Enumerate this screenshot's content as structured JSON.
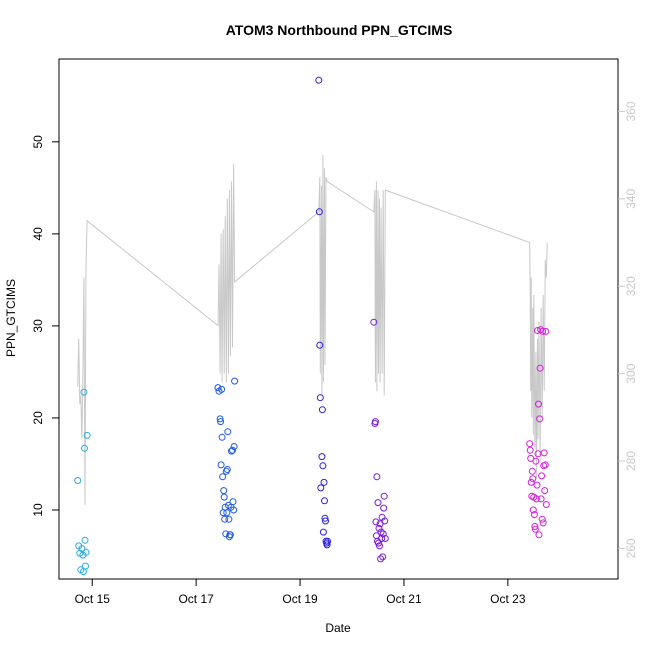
{
  "chart_data": {
    "type": "scatter",
    "title": "ATOM3 Northbound PPN_GTCIMS",
    "xlabel": "Date",
    "ylabel": "PPN_GTCIMS",
    "x_ticks": [
      "Oct 15",
      "Oct 17",
      "Oct 19",
      "Oct 21",
      "Oct 23"
    ],
    "x_tick_days": [
      15,
      17,
      19,
      21,
      23
    ],
    "xlim_days": [
      14.36,
      25.12
    ],
    "y_ticks": [
      10,
      20,
      30,
      40,
      50
    ],
    "ylim": [
      2.5,
      59
    ],
    "y2_ticks": [
      260,
      280,
      300,
      320,
      340,
      360
    ],
    "y2lim": [
      253,
      372
    ],
    "grid": false,
    "legend": "none",
    "colors": {
      "g1": "#29abe2",
      "g2": "#1f5ae8",
      "g3": "#2a1ee6",
      "g4": "#7a1bd9",
      "g5": "#d81ee0",
      "line": "#c8c8c8"
    },
    "series": [
      {
        "color_key": "g1",
        "points": [
          [
            14.72,
            13.2
          ],
          [
            14.74,
            6.1
          ],
          [
            14.76,
            5.3
          ],
          [
            14.78,
            3.5
          ],
          [
            14.8,
            5.8
          ],
          [
            14.82,
            5.1
          ],
          [
            14.83,
            3.3
          ],
          [
            14.84,
            22.8
          ],
          [
            14.85,
            16.7
          ],
          [
            14.86,
            6.7
          ],
          [
            14.87,
            3.9
          ],
          [
            14.88,
            5.4
          ],
          [
            14.9,
            18.1
          ]
        ]
      },
      {
        "color_key": "g2",
        "points": [
          [
            17.42,
            23.3
          ],
          [
            17.44,
            22.9
          ],
          [
            17.46,
            19.9
          ],
          [
            17.47,
            19.6
          ],
          [
            17.48,
            14.9
          ],
          [
            17.49,
            23.1
          ],
          [
            17.5,
            17.9
          ],
          [
            17.51,
            13.6
          ],
          [
            17.52,
            9.7
          ],
          [
            17.53,
            12.1
          ],
          [
            17.54,
            11.4
          ],
          [
            17.55,
            9.0
          ],
          [
            17.56,
            10.3
          ],
          [
            17.57,
            7.4
          ],
          [
            17.58,
            14.2
          ],
          [
            17.59,
            9.7
          ],
          [
            17.6,
            14.4
          ],
          [
            17.61,
            18.5
          ],
          [
            17.62,
            10.5
          ],
          [
            17.63,
            9.0
          ],
          [
            17.64,
            7.1
          ],
          [
            17.65,
            7.3
          ],
          [
            17.66,
            7.3
          ],
          [
            17.67,
            10.3
          ],
          [
            17.68,
            16.4
          ],
          [
            17.7,
            16.5
          ],
          [
            17.71,
            10.9
          ],
          [
            17.72,
            10.0
          ],
          [
            17.73,
            16.9
          ],
          [
            17.74,
            24.0
          ]
        ]
      },
      {
        "color_key": "g3",
        "points": [
          [
            19.36,
            56.7
          ],
          [
            19.37,
            42.4
          ],
          [
            19.38,
            27.9
          ],
          [
            19.39,
            22.2
          ],
          [
            19.4,
            12.4
          ],
          [
            19.42,
            15.8
          ],
          [
            19.43,
            20.9
          ],
          [
            19.44,
            14.8
          ],
          [
            19.45,
            7.6
          ],
          [
            19.46,
            13.0
          ],
          [
            19.47,
            11.0
          ],
          [
            19.48,
            9.1
          ],
          [
            19.49,
            8.8
          ],
          [
            19.5,
            6.6
          ],
          [
            19.51,
            6.4
          ],
          [
            19.52,
            6.2
          ],
          [
            19.53,
            6.6
          ]
        ]
      },
      {
        "color_key": "g4",
        "points": [
          [
            20.42,
            30.4
          ],
          [
            20.44,
            19.4
          ],
          [
            20.45,
            19.6
          ],
          [
            20.46,
            8.7
          ],
          [
            20.47,
            7.2
          ],
          [
            20.48,
            13.6
          ],
          [
            20.49,
            6.6
          ],
          [
            20.5,
            10.8
          ],
          [
            20.51,
            6.4
          ],
          [
            20.52,
            8.0
          ],
          [
            20.53,
            6.1
          ],
          [
            20.54,
            8.5
          ],
          [
            20.55,
            4.7
          ],
          [
            20.56,
            7.6
          ],
          [
            20.57,
            6.9
          ],
          [
            20.58,
            9.2
          ],
          [
            20.59,
            4.9
          ],
          [
            20.6,
            7.4
          ],
          [
            20.61,
            10.2
          ],
          [
            20.62,
            11.5
          ],
          [
            20.63,
            8.8
          ],
          [
            20.64,
            6.9
          ]
        ]
      },
      {
        "color_key": "g5",
        "points": [
          [
            23.42,
            17.2
          ],
          [
            23.43,
            16.5
          ],
          [
            23.44,
            15.6
          ],
          [
            23.45,
            13.0
          ],
          [
            23.46,
            11.5
          ],
          [
            23.47,
            14.2
          ],
          [
            23.48,
            13.4
          ],
          [
            23.49,
            10.0
          ],
          [
            23.5,
            11.4
          ],
          [
            23.51,
            9.5
          ],
          [
            23.52,
            8.2
          ],
          [
            23.53,
            7.9
          ],
          [
            23.54,
            15.3
          ],
          [
            23.55,
            11.2
          ],
          [
            23.56,
            12.7
          ],
          [
            23.57,
            29.5
          ],
          [
            23.58,
            16.1
          ],
          [
            23.59,
            21.5
          ],
          [
            23.6,
            7.3
          ],
          [
            23.61,
            19.9
          ],
          [
            23.62,
            25.4
          ],
          [
            23.63,
            29.6
          ],
          [
            23.64,
            11.2
          ],
          [
            23.65,
            13.7
          ],
          [
            23.66,
            9.0
          ],
          [
            23.67,
            29.4
          ],
          [
            23.68,
            8.6
          ],
          [
            23.69,
            14.8
          ],
          [
            23.7,
            16.2
          ],
          [
            23.71,
            12.1
          ],
          [
            23.72,
            14.9
          ],
          [
            23.73,
            29.4
          ],
          [
            23.74,
            10.6
          ]
        ]
      }
    ],
    "line_y2": [
      [
        14.72,
        297
      ],
      [
        14.74,
        308
      ],
      [
        14.76,
        293
      ],
      [
        14.78,
        295
      ],
      [
        14.8,
        285
      ],
      [
        14.82,
        300
      ],
      [
        14.84,
        322
      ],
      [
        14.86,
        270
      ],
      [
        14.88,
        325
      ],
      [
        14.9,
        335
      ],
      [
        17.42,
        311
      ],
      [
        17.44,
        325
      ],
      [
        17.46,
        300
      ],
      [
        17.48,
        332
      ],
      [
        17.5,
        298
      ],
      [
        17.52,
        333
      ],
      [
        17.54,
        300
      ],
      [
        17.56,
        336
      ],
      [
        17.58,
        298
      ],
      [
        17.6,
        340
      ],
      [
        17.62,
        300
      ],
      [
        17.64,
        342
      ],
      [
        17.66,
        304
      ],
      [
        17.68,
        344
      ],
      [
        17.7,
        306
      ],
      [
        17.72,
        348
      ],
      [
        17.74,
        321
      ],
      [
        19.36,
        337
      ],
      [
        19.38,
        345
      ],
      [
        19.39,
        300
      ],
      [
        19.41,
        343
      ],
      [
        19.42,
        295
      ],
      [
        19.44,
        350
      ],
      [
        19.45,
        298
      ],
      [
        19.47,
        347
      ],
      [
        19.48,
        302
      ],
      [
        19.5,
        345
      ],
      [
        19.52,
        344
      ],
      [
        20.42,
        337
      ],
      [
        20.44,
        342
      ],
      [
        20.45,
        298
      ],
      [
        20.47,
        344
      ],
      [
        20.48,
        296
      ],
      [
        20.5,
        342
      ],
      [
        20.51,
        300
      ],
      [
        20.53,
        340
      ],
      [
        20.54,
        298
      ],
      [
        20.56,
        338
      ],
      [
        20.58,
        300
      ],
      [
        20.6,
        342
      ],
      [
        20.62,
        295
      ],
      [
        20.64,
        342
      ],
      [
        23.42,
        330
      ],
      [
        23.43,
        318
      ],
      [
        23.44,
        296
      ],
      [
        23.45,
        322
      ],
      [
        23.46,
        290
      ],
      [
        23.48,
        315
      ],
      [
        23.49,
        286
      ],
      [
        23.5,
        318
      ],
      [
        23.52,
        283
      ],
      [
        23.54,
        305
      ],
      [
        23.55,
        276
      ],
      [
        23.57,
        308
      ],
      [
        23.58,
        285
      ],
      [
        23.6,
        312
      ],
      [
        23.62,
        280
      ],
      [
        23.64,
        315
      ],
      [
        23.66,
        290
      ],
      [
        23.68,
        318
      ],
      [
        23.7,
        296
      ],
      [
        23.72,
        326
      ],
      [
        23.74,
        322
      ],
      [
        23.76,
        330
      ]
    ]
  }
}
